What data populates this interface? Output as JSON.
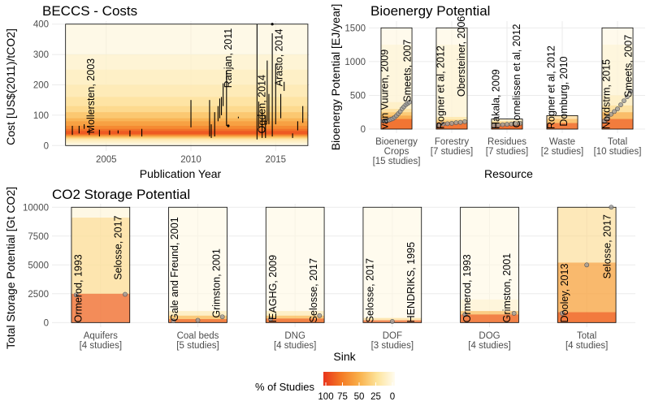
{
  "colors": {
    "grid": "#ebebeb",
    "point_fill": "#9e9e9e",
    "point_stroke": "#555555",
    "segment": "#000000"
  },
  "legend": {
    "title": "% of Studies",
    "ticks": [
      "100",
      "75",
      "50",
      "25",
      "0"
    ]
  },
  "chart_data": [
    {
      "id": "costs",
      "type": "segments",
      "title": "BECCS - Costs",
      "xlabel": "Publication Year",
      "ylabel": "Cost [US$(2011)/tCO2]",
      "xlim": [
        2001.8,
        2017.0
      ],
      "ylim": [
        -18,
        410
      ],
      "xticks": [
        "2005",
        "2010",
        "2015"
      ],
      "yticks": [
        "0",
        "100",
        "200",
        "300",
        "400"
      ],
      "band_fill_y": [
        [
          0,
          400,
          0.08
        ],
        [
          5,
          300,
          0.12
        ],
        [
          10,
          250,
          0.15
        ],
        [
          15,
          200,
          0.2
        ],
        [
          20,
          160,
          0.27
        ],
        [
          22,
          130,
          0.34
        ],
        [
          25,
          110,
          0.45
        ],
        [
          28,
          90,
          0.55
        ],
        [
          30,
          80,
          0.65
        ],
        [
          33,
          65,
          0.75
        ],
        [
          35,
          55,
          0.85
        ],
        [
          38,
          48,
          0.93
        ]
      ],
      "segments": [
        {
          "x": 2003.0,
          "ymin": 35,
          "ymax": 65
        },
        {
          "x": 2003.4,
          "ymin": 40,
          "ymax": 65
        },
        {
          "x": 2003.7,
          "ymin": 55,
          "ymax": 70
        },
        {
          "x": 2004.0,
          "ymin": 35,
          "ymax": 55
        },
        {
          "x": 2004.6,
          "ymin": 30,
          "ymax": 52
        },
        {
          "x": 2005.2,
          "ymin": 35,
          "ymax": 50
        },
        {
          "x": 2005.7,
          "ymin": 40,
          "ymax": 50
        },
        {
          "x": 2006.4,
          "ymin": 30,
          "ymax": 50
        },
        {
          "x": 2007.1,
          "ymin": 30,
          "ymax": 55
        },
        {
          "x": 2010.0,
          "ymin": 60,
          "ymax": 150
        },
        {
          "x": 2011.1,
          "ymin": 30,
          "ymax": 150
        },
        {
          "x": 2011.2,
          "ymin": 25,
          "ymax": 70
        },
        {
          "x": 2011.4,
          "ymin": 30,
          "ymax": 110
        },
        {
          "x": 2011.6,
          "ymin": 80,
          "ymax": 130
        },
        {
          "x": 2011.7,
          "ymin": 90,
          "ymax": 155
        },
        {
          "x": 2011.8,
          "ymin": 100,
          "ymax": 160
        },
        {
          "x": 2011.9,
          "ymin": 130,
          "ymax": 205
        },
        {
          "x": 2012.1,
          "ymin": 65,
          "ymax": 245
        },
        {
          "x": 2012.8,
          "ymin": 90,
          "ymax": 95
        },
        {
          "x": 2013.9,
          "ymin": 20,
          "ymax": 400
        },
        {
          "x": 2014.0,
          "ymin": 60,
          "ymax": 145
        },
        {
          "x": 2014.2,
          "ymin": 25,
          "ymax": 120
        },
        {
          "x": 2014.4,
          "ymin": 25,
          "ymax": 100
        },
        {
          "x": 2014.5,
          "ymin": 80,
          "ymax": 280
        },
        {
          "x": 2014.6,
          "ymin": 70,
          "ymax": 170
        },
        {
          "x": 2014.8,
          "ymin": 30,
          "ymax": 370
        },
        {
          "x": 2015.0,
          "ymin": 70,
          "ymax": 270
        },
        {
          "x": 2015.3,
          "ymin": 90,
          "ymax": 170
        },
        {
          "x": 2015.5,
          "ymin": 180,
          "ymax": 210
        },
        {
          "x": 2016.0,
          "ymin": 25,
          "ymax": 40
        },
        {
          "x": 2016.3,
          "ymin": 50,
          "ymax": 80
        },
        {
          "x": 2016.6,
          "ymin": 75,
          "ymax": 130
        }
      ],
      "points": [
        {
          "x": 2012.2,
          "y": 65
        },
        {
          "x": 2014.8,
          "y": 400
        }
      ],
      "annotations": [
        {
          "x": 2004.1,
          "y": 40,
          "text": "Mollersten, 2003"
        },
        {
          "x": 2012.2,
          "y": 190,
          "text": "Ranjan, 2011"
        },
        {
          "x": 2014.2,
          "y": 40,
          "text": "Ogden, 2014"
        },
        {
          "x": 2015.2,
          "y": 195,
          "text": "Arasto, 2014"
        }
      ]
    },
    {
      "id": "bioenergy",
      "type": "category-panels",
      "title": "Bioenergy Potential",
      "xlabel": "Resource",
      "ylabel": "Bioenergy Potential [EJ/year]",
      "ylim": [
        -60,
        1600
      ],
      "yticks": [
        "0",
        "500",
        "1000",
        "1500"
      ],
      "categories": [
        {
          "label": [
            "Bioenergy",
            "Crops",
            "[15 studies]"
          ],
          "max": 1500,
          "fill_bands": [
            [
              0,
              1500,
              0.05
            ],
            [
              0,
              1250,
              0.08
            ],
            [
              0,
              400,
              0.15
            ],
            [
              0,
              300,
              0.3
            ],
            [
              0,
              250,
              0.45
            ],
            [
              0,
              200,
              0.6
            ],
            [
              0,
              150,
              0.9
            ]
          ],
          "points": [
            120,
            125,
            130,
            135,
            145,
            155,
            175,
            200,
            230,
            260,
            300,
            330,
            360,
            380,
            400
          ],
          "annotations": [
            {
              "frac": 0.12,
              "y": 0,
              "text": "van Vuuren, 2009"
            },
            {
              "frac": 0.85,
              "y": 400,
              "text": "Smeets, 2007"
            }
          ]
        },
        {
          "label": [
            "Forestry",
            "[7 studies]"
          ],
          "max": 1500,
          "fill_bands": [
            [
              0,
              1500,
              0.05
            ],
            [
              0,
              1250,
              0.08
            ],
            [
              0,
              180,
              0.25
            ],
            [
              0,
              140,
              0.4
            ],
            [
              0,
              110,
              0.6
            ],
            [
              0,
              90,
              0.9
            ]
          ],
          "points": [
            65,
            75,
            80,
            85,
            95,
            100,
            110
          ],
          "annotations": [
            {
              "frac": 0.15,
              "y": 0,
              "text": "Rogner et al, 2012"
            },
            {
              "frac": 0.82,
              "y": 480,
              "text": "Obersteiner, 2006"
            }
          ]
        },
        {
          "label": [
            "Residues",
            "[7 studies]"
          ],
          "max": 150,
          "fill_bands": [
            [
              0,
              150,
              0.2
            ],
            [
              0,
              120,
              0.3
            ],
            [
              0,
              100,
              0.5
            ],
            [
              0,
              80,
              0.7
            ],
            [
              0,
              60,
              0.9
            ]
          ],
          "points": [
            55,
            60,
            65,
            70,
            75,
            80,
            85
          ],
          "annotations": [
            {
              "frac": 0.15,
              "y": 0,
              "text": "Hakala, 2009"
            },
            {
              "frac": 0.82,
              "y": 20,
              "text": "Cornelissen et al, 2012"
            }
          ]
        },
        {
          "label": [
            "Waste",
            "[2 studies]"
          ],
          "max": 200,
          "fill_bands": [
            [
              0,
              200,
              0.35
            ],
            [
              0,
              150,
              0.5
            ],
            [
              0,
              90,
              0.9
            ]
          ],
          "points": [],
          "annotations": [
            {
              "frac": 0.15,
              "y": 0,
              "text": "Rogner et al, 2012"
            },
            {
              "frac": 0.55,
              "y": 40,
              "text": "Domburg, 2010"
            }
          ]
        },
        {
          "label": [
            "Total",
            "[10 studies]"
          ],
          "max": 1500,
          "fill_bands": [
            [
              0,
              1500,
              0.05
            ],
            [
              0,
              1250,
              0.08
            ],
            [
              0,
              500,
              0.15
            ],
            [
              0,
              350,
              0.3
            ],
            [
              0,
              250,
              0.55
            ],
            [
              0,
              150,
              0.9
            ]
          ],
          "points": [
            120,
            170,
            220,
            260,
            300,
            360,
            420,
            480,
            560
          ],
          "annotations": [
            {
              "frac": 0.15,
              "y": 0,
              "text": "Nordstrm, 2015"
            },
            {
              "frac": 0.85,
              "y": 470,
              "text": "Smeets, 2007"
            }
          ]
        }
      ]
    },
    {
      "id": "storage",
      "type": "category-panels",
      "title": "CO2 Storage Potential",
      "xlabel": "Sink",
      "ylabel": "Total Storage Potential [Gt CO2]",
      "ylim": [
        -400,
        10300
      ],
      "yticks": [
        "0",
        "2500",
        "5000",
        "7500",
        "10000"
      ],
      "categories": [
        {
          "label": [
            "Aquifers",
            "[4 studies]"
          ],
          "max": 10000,
          "fill_bands": [
            [
              0,
              10000,
              0.08
            ],
            [
              0,
              9100,
              0.3
            ],
            [
              0,
              2500,
              0.9
            ]
          ],
          "points": [
            2400,
            2450
          ],
          "annotations": [
            {
              "frac": 0.12,
              "y": 0,
              "text": "Ormerod, 1993"
            },
            {
              "frac": 0.8,
              "y": 3700,
              "text": "Selosse, 2017"
            }
          ]
        },
        {
          "label": [
            "Coal beds",
            "[5 studies]"
          ],
          "max": 10000,
          "fill_bands": [
            [
              0,
              10000,
              0.04
            ],
            [
              0,
              1000,
              0.2
            ],
            [
              0,
              600,
              0.5
            ],
            [
              0,
              300,
              0.9
            ]
          ],
          "points": [
            150,
            200,
            500
          ],
          "annotations": [
            {
              "frac": 0.1,
              "y": 100,
              "text": "Gale and Freund, 2001"
            },
            {
              "frac": 0.82,
              "y": 400,
              "text": "Grimston, 2001"
            }
          ]
        },
        {
          "label": [
            "DNG",
            "[4 studies]"
          ],
          "max": 10000,
          "fill_bands": [
            [
              0,
              10000,
              0.04
            ],
            [
              0,
              1000,
              0.2
            ],
            [
              0,
              600,
              0.5
            ],
            [
              0,
              350,
              0.9
            ]
          ],
          "points": [
            300,
            600
          ],
          "annotations": [
            {
              "frac": 0.12,
              "y": 0,
              "text": "IEAGHG, 2009"
            },
            {
              "frac": 0.82,
              "y": 0,
              "text": "Selosse, 2017"
            }
          ]
        },
        {
          "label": [
            "DOF",
            "[3 studies]"
          ],
          "max": 10000,
          "fill_bands": [
            [
              0,
              10000,
              0.04
            ],
            [
              0,
              400,
              0.3
            ],
            [
              0,
              200,
              0.9
            ]
          ],
          "points": [
            100
          ],
          "annotations": [
            {
              "frac": 0.12,
              "y": 0,
              "text": "Selosse, 2017"
            },
            {
              "frac": 0.82,
              "y": 0,
              "text": "HENDRIKS, 1995"
            }
          ]
        },
        {
          "label": [
            "DOG",
            "[4 studies]"
          ],
          "max": 10000,
          "fill_bands": [
            [
              0,
              10000,
              0.04
            ],
            [
              0,
              2000,
              0.1
            ],
            [
              0,
              1000,
              0.5
            ],
            [
              0,
              700,
              0.9
            ]
          ],
          "points": [
            700,
            800
          ],
          "annotations": [
            {
              "frac": 0.12,
              "y": 0,
              "text": "Ormerod, 1993"
            },
            {
              "frac": 0.8,
              "y": 0,
              "text": "Grimston, 2001"
            }
          ]
        },
        {
          "label": [
            "Total",
            "[4 studies]"
          ],
          "max": 10000,
          "fill_bands": [
            [
              0,
              10000,
              0.3
            ],
            [
              0,
              5200,
              0.6
            ],
            [
              0,
              900,
              0.9
            ]
          ],
          "points": [
            800,
            5000,
            10000
          ],
          "annotations": [
            {
              "frac": 0.12,
              "y": 0,
              "text": "Dooley, 2013"
            },
            {
              "frac": 0.85,
              "y": 3800,
              "text": "Selosse, 2017"
            }
          ]
        }
      ]
    }
  ]
}
